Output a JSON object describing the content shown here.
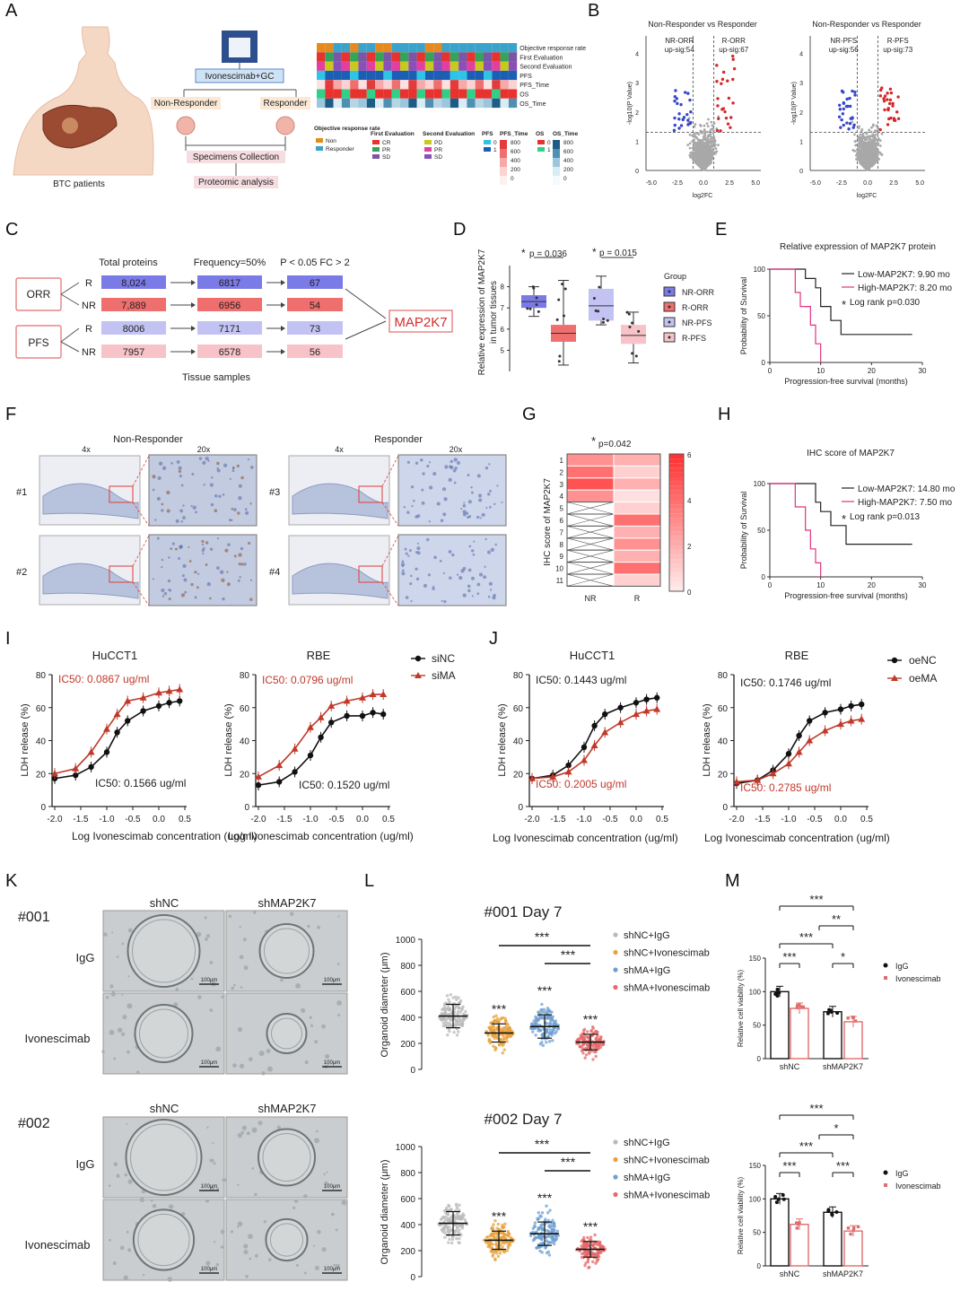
{
  "panels": {
    "A": {
      "letter": "A",
      "patients": "BTC patients",
      "treatment": "Ivonescimab+GC",
      "non_responder": "Non-Responder",
      "responder": "Responder",
      "specimens": "Specimens Collection",
      "proteomic": "Proteomic analysis",
      "heat_rows": [
        "Objective response rate",
        "First Evaluation",
        "Second Evaluation",
        "PFS",
        "PFS_Time",
        "OS",
        "OS_Time"
      ],
      "legend_titles": [
        "Objective response rate",
        "First Evaluation",
        "Second Evaluation",
        "PFS",
        "PFS_Time",
        "OS",
        "OS_Time"
      ],
      "orr_items": [
        "Non",
        "Responder"
      ],
      "first_items": [
        "CR",
        "PR",
        "SD"
      ],
      "second_items": [
        "PD",
        "PR",
        "SD"
      ],
      "pfs_items": [
        "0",
        "1"
      ],
      "pfs_time_ticks": [
        "800",
        "600",
        "400",
        "200",
        "0"
      ],
      "os_items": [
        "0",
        "1"
      ],
      "os_time_ticks": [
        "800",
        "600",
        "400",
        "200",
        "0"
      ],
      "colors": {
        "orr_non": "#e58a1f",
        "orr_resp": "#3aa3c9",
        "cr": "#e8322e",
        "pr": "#35a35a",
        "sd": "#7b55a6",
        "pd": "#c7c91f",
        "pr2": "#e33fa0",
        "sd2": "#8b4fb8",
        "pfs0": "#2ec4e6",
        "pfs1": "#1b5fb5",
        "os0": "#e8322e",
        "os1": "#2fd18a"
      }
    },
    "B": {
      "letter": "B",
      "plots": [
        {
          "title": "Non-Responder vs Responder",
          "left_label": "NR-ORR",
          "left_sig": "up-sig:54",
          "right_label": "R-ORR",
          "right_sig": "up-sig:67"
        },
        {
          "title": "Non-Responder vs Responder",
          "left_label": "NR-PFS",
          "left_sig": "up-sig:56",
          "right_label": "R-PFS",
          "right_sig": "up-sig:73"
        }
      ],
      "xlabel": "log2FC",
      "ylabel": "-log10(P Value)",
      "xticks": [
        "-5.0",
        "-2.5",
        "0.0",
        "2.5",
        "5.0"
      ],
      "yticks": [
        "0",
        "1",
        "2",
        "3",
        "4"
      ]
    },
    "C": {
      "letter": "C",
      "col_headers": [
        "Total proteins",
        "Frequency=50%",
        "P < 0.05  FC > 2"
      ],
      "groups": [
        "ORR",
        "PFS"
      ],
      "rows": [
        {
          "label": "R",
          "values": [
            "8,024",
            "6817",
            "67"
          ],
          "color": "#7b7be8"
        },
        {
          "label": "NR",
          "values": [
            "7,889",
            "6956",
            "54"
          ],
          "color": "#ef6f6f"
        },
        {
          "label": "R",
          "values": [
            "8006",
            "7171",
            "73"
          ],
          "color": "#c3c3f3"
        },
        {
          "label": "NR",
          "values": [
            "7957",
            "6578",
            "56"
          ],
          "color": "#f7c3c9"
        }
      ],
      "result": "MAP2K7",
      "footer": "Tissue samples"
    },
    "D": {
      "letter": "D",
      "ylabel1": "Relative expression of MAP2K7",
      "ylabel2": "in tumor tissues",
      "p1": "p = 0.036",
      "p2": "p = 0.015",
      "star": "*",
      "yticks": [
        "5",
        "6",
        "7",
        "8"
      ],
      "legend_title": "Group",
      "legend": [
        {
          "label": "NR-ORR",
          "color": "#7b7be8"
        },
        {
          "label": "R-ORR",
          "color": "#ef6f6f"
        },
        {
          "label": "NR-PFS",
          "color": "#c3c3f3"
        },
        {
          "label": "R-PFS",
          "color": "#f7c3c9"
        }
      ]
    },
    "E": {
      "letter": "E",
      "title": "Relative expression of MAP2K7 protein",
      "low": "Low-MAP2K7: 9.90 mo",
      "high": "High-MAP2K7: 8.20 mo",
      "logrank": "Log rank p=0.030",
      "star": "*",
      "ylabel": "Probability of Survival",
      "xlabel": "Progression-free survival (months)",
      "xticks": [
        "0",
        "10",
        "20",
        "30"
      ],
      "yticks": [
        "0",
        "50",
        "100"
      ]
    },
    "F": {
      "letter": "F",
      "non_responder": "Non-Responder",
      "responder": "Responder",
      "mag_low": "4x",
      "mag_high": "20x",
      "ids": [
        "#1",
        "#2",
        "#3",
        "#4"
      ]
    },
    "G": {
      "letter": "G",
      "star": "*",
      "p": "p=0.042",
      "ylabel": "IHC score of MAP2K7",
      "rows": [
        "1",
        "2",
        "3",
        "4",
        "5",
        "6",
        "7",
        "8",
        "9",
        "10",
        "11"
      ],
      "cols": [
        "NR",
        "R"
      ],
      "scale_ticks": [
        "6",
        "4",
        "2",
        "0"
      ],
      "nr_values": [
        3,
        4,
        5,
        3,
        null,
        null,
        null,
        null,
        null,
        null,
        null
      ],
      "r_values": [
        2,
        1,
        2,
        0.5,
        1,
        4,
        2,
        3,
        2,
        4,
        1
      ]
    },
    "H": {
      "letter": "H",
      "title": "IHC score of MAP2K7",
      "low": "Low-MAP2K7: 14.80 mo",
      "high": "High-MAP2K7: 7.50 mo",
      "logrank": "Log rank p=0.013",
      "star": "*",
      "ylabel": "Probability of Survival",
      "xlabel": "Progression-free survival (months)",
      "xticks": [
        "0",
        "10",
        "20",
        "30"
      ],
      "yticks": [
        "0",
        "50",
        "100"
      ]
    },
    "I": {
      "letter": "I",
      "plots": [
        {
          "title": "HuCCT1",
          "ic50_red": "IC50: 0.0867 ug/ml",
          "ic50_black": "IC50: 0.1566 ug/ml"
        },
        {
          "title": "RBE",
          "ic50_red": "IC50: 0.0796 ug/ml",
          "ic50_black": "IC50: 0.1520 ug/ml"
        }
      ],
      "legend": [
        "siNC",
        "siMA"
      ]
    },
    "J": {
      "letter": "J",
      "plots": [
        {
          "title": "HuCCT1",
          "ic50_black": "IC50: 0.1443 ug/ml",
          "ic50_red": "IC50: 0.2005 ug/ml"
        },
        {
          "title": "RBE",
          "ic50_black": "IC50: 0.1746 ug/ml",
          "ic50_red": "IC50: 0.2785 ug/ml"
        }
      ],
      "legend": [
        "oeNC",
        "oeMA"
      ]
    },
    "dose": {
      "ylabel": "LDH release (%)",
      "xlabel": "Log Ivonescimab concentration (ug/ml)",
      "xticks": [
        "-2.0",
        "-1.5",
        "-1.0",
        "-0.5",
        "0.0",
        "0.5"
      ],
      "yticks": [
        "0",
        "20",
        "40",
        "60",
        "80"
      ]
    },
    "K": {
      "letter": "K",
      "blocks": [
        {
          "id": "#001",
          "col1": "shNC",
          "col2": "shMAP2K7",
          "row1": "IgG",
          "row2": "Ivonescimab"
        },
        {
          "id": "#002",
          "col1": "shNC",
          "col2": "shMAP2K7",
          "row1": "IgG",
          "row2": "Ivonescimab"
        }
      ],
      "scale": "100μm"
    },
    "L": {
      "letter": "L",
      "plots": [
        {
          "title": "#001  Day 7"
        },
        {
          "title": "#002  Day 7"
        }
      ],
      "ylabel": "Organoid diameter (μm)",
      "yticks": [
        "0",
        "200",
        "400",
        "600",
        "800",
        "1000"
      ],
      "legend": [
        "shNC+IgG",
        "shNC+Ivonescimab",
        "shMA+IgG",
        "shMA+Ivonescimab"
      ],
      "sig": "***"
    },
    "M": {
      "letter": "M",
      "ylabel": "Relative cell viability (%)",
      "yticks": [
        "0",
        "50",
        "100",
        "150"
      ],
      "categories": [
        "shNC",
        "shMAP2K7"
      ],
      "legend": [
        "IgG",
        "Ivonescimab"
      ],
      "plots": [
        {
          "brackets": [
            "***",
            "**",
            "***",
            "***",
            "*"
          ]
        },
        {
          "brackets": [
            "***",
            "*",
            "***",
            "***",
            "***"
          ]
        }
      ]
    }
  },
  "chart_data": [
    {
      "type": "bar",
      "title": "",
      "categories": [
        "shNC",
        "shMAP2K7"
      ],
      "series": [
        {
          "name": "IgG",
          "values": [
            100,
            70
          ]
        },
        {
          "name": "Ivonescimab",
          "values": [
            75,
            55
          ]
        }
      ],
      "ylim": [
        0,
        150
      ],
      "ylabel": "Relative cell viability (%)"
    },
    {
      "type": "bar",
      "title": "",
      "categories": [
        "shNC",
        "shMAP2K7"
      ],
      "series": [
        {
          "name": "IgG",
          "values": [
            100,
            80
          ]
        },
        {
          "name": "Ivonescimab",
          "values": [
            62,
            52
          ]
        }
      ],
      "ylim": [
        0,
        150
      ],
      "ylabel": "Relative cell viability (%)"
    },
    {
      "type": "line",
      "title": "HuCCT1",
      "xlabel": "Log Ivonescimab concentration (ug/ml)",
      "ylabel": "LDH release (%)",
      "x": [
        -2.0,
        -1.6,
        -1.3,
        -1.0,
        -0.8,
        -0.6,
        -0.3,
        0.0,
        0.2,
        0.4
      ],
      "series": [
        {
          "name": "siNC",
          "values": [
            17,
            19,
            24,
            33,
            45,
            52,
            58,
            61,
            63,
            64
          ]
        },
        {
          "name": "siMA",
          "values": [
            20,
            23,
            33,
            47,
            56,
            64,
            66,
            69,
            70,
            71
          ]
        }
      ]
    },
    {
      "type": "line",
      "title": "RBE",
      "xlabel": "Log Ivonescimab concentration (ug/ml)",
      "ylabel": "LDH release (%)",
      "x": [
        -2.0,
        -1.6,
        -1.3,
        -1.0,
        -0.8,
        -0.6,
        -0.3,
        0.0,
        0.2,
        0.4
      ],
      "series": [
        {
          "name": "siNC",
          "values": [
            13,
            15,
            21,
            31,
            42,
            51,
            55,
            55,
            57,
            56
          ]
        },
        {
          "name": "siMA",
          "values": [
            18,
            25,
            35,
            48,
            54,
            61,
            64,
            66,
            68,
            68
          ]
        }
      ]
    },
    {
      "type": "line",
      "title": "HuCCT1",
      "xlabel": "Log Ivonescimab concentration (ug/ml)",
      "ylabel": "LDH release (%)",
      "x": [
        -2.0,
        -1.6,
        -1.3,
        -1.0,
        -0.8,
        -0.6,
        -0.3,
        0.0,
        0.2,
        0.4
      ],
      "series": [
        {
          "name": "oeNC",
          "values": [
            17,
            19,
            25,
            36,
            49,
            56,
            60,
            63,
            65,
            66
          ]
        },
        {
          "name": "oeMA",
          "values": [
            17,
            18,
            21,
            28,
            37,
            45,
            51,
            56,
            58,
            59
          ]
        }
      ]
    },
    {
      "type": "line",
      "title": "RBE",
      "xlabel": "Log Ivonescimab concentration (ug/ml)",
      "ylabel": "LDH release (%)",
      "x": [
        -2.0,
        -1.6,
        -1.3,
        -1.0,
        -0.8,
        -0.6,
        -0.3,
        0.0,
        0.2,
        0.4
      ],
      "series": [
        {
          "name": "oeNC",
          "values": [
            14,
            16,
            22,
            32,
            43,
            52,
            57,
            59,
            61,
            62
          ]
        },
        {
          "name": "oeMA",
          "values": [
            15,
            16,
            20,
            26,
            33,
            40,
            46,
            50,
            52,
            53
          ]
        }
      ]
    }
  ]
}
